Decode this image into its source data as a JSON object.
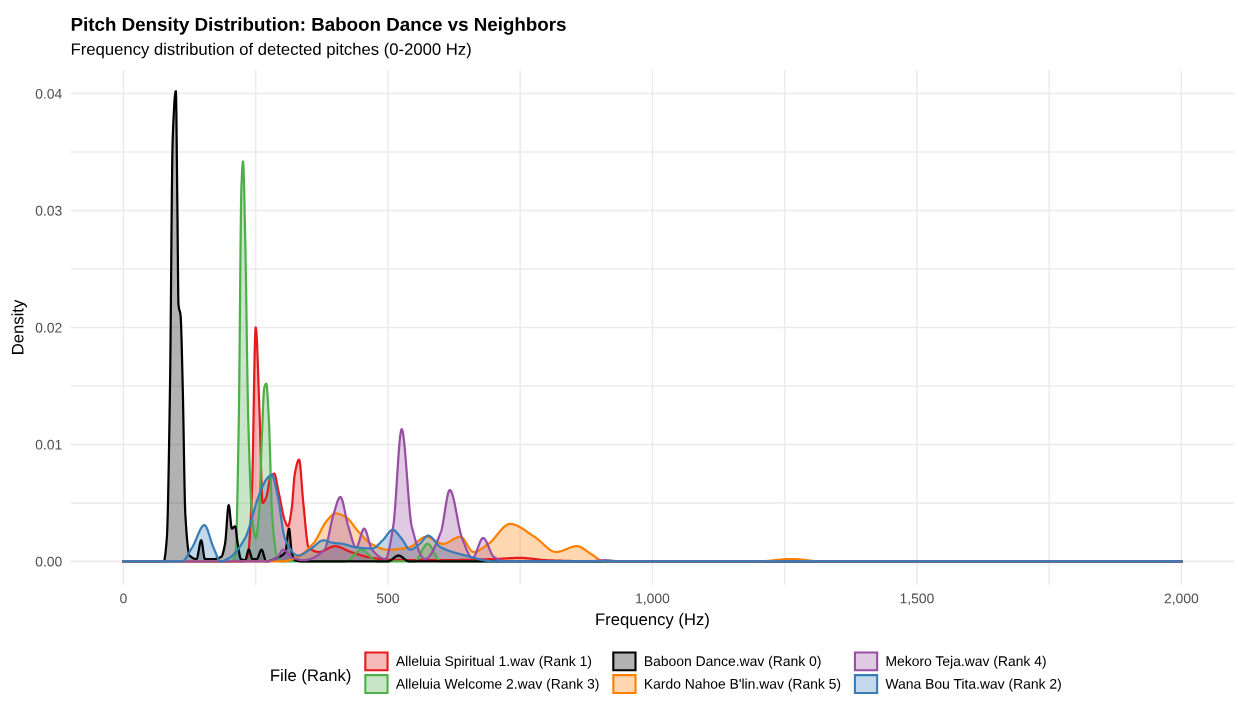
{
  "chart_data": {
    "type": "area",
    "title": "Pitch Density Distribution: Baboon Dance vs Neighbors",
    "subtitle": "Frequency distribution of detected pitches (0-2000 Hz)",
    "xlabel": "Frequency (Hz)",
    "ylabel": "Density",
    "legend_title": "File (Rank)",
    "legend": "bottom",
    "grid": true,
    "xlim": [
      -100,
      2100
    ],
    "xticks": [
      0,
      {
        "value": 250,
        "label": null
      },
      500,
      {
        "value": 750,
        "label": null
      },
      {
        "value": 1000,
        "label": "1,000"
      },
      {
        "value": 1250,
        "label": null
      },
      {
        "value": 1500,
        "label": "1,500"
      },
      {
        "value": 1750,
        "label": null
      },
      {
        "value": 2000,
        "label": "2,000"
      }
    ],
    "ylim": [
      -0.002,
      0.042
    ],
    "yticks": [
      {
        "value": 0,
        "label": "0.00"
      },
      {
        "value": 0.005,
        "label": null
      },
      {
        "value": 0.01,
        "label": "0.01"
      },
      {
        "value": 0.015,
        "label": null
      },
      {
        "value": 0.02,
        "label": "0.02"
      },
      {
        "value": 0.025,
        "label": null
      },
      {
        "value": 0.03,
        "label": "0.03"
      },
      {
        "value": 0.035,
        "label": null
      },
      {
        "value": 0.04,
        "label": "0.04"
      }
    ],
    "series": [
      {
        "name": "Alleluia Spiritual 1.wav (Rank 1)",
        "color": "#e41a1c",
        "x": [
          0,
          225,
          235,
          243,
          250,
          257,
          263,
          270,
          278,
          285,
          293,
          305,
          311,
          318,
          324,
          332,
          340,
          350,
          370,
          400,
          430,
          470,
          520,
          600,
          700,
          750,
          800,
          900,
          1000,
          2000
        ],
        "values": [
          0,
          0,
          0.0005,
          0.006,
          0.02,
          0.013,
          0.005,
          0.0055,
          0.0072,
          0.0075,
          0.006,
          0.0035,
          0.003,
          0.0045,
          0.0075,
          0.0087,
          0.005,
          0.0012,
          0.0008,
          0.0013,
          0.0008,
          0.0003,
          0.0001,
          0.0001,
          0.0002,
          0.0003,
          0.0001,
          0,
          0,
          0
        ]
      },
      {
        "name": "Alleluia Welcome 2.wav (Rank 3)",
        "color": "#4daf4a",
        "x": [
          0,
          205,
          212,
          218,
          223,
          226,
          230,
          236,
          243,
          250,
          256,
          262,
          266,
          270,
          275,
          281,
          290,
          300,
          420,
          450,
          480,
          550,
          575,
          600,
          700,
          2000
        ],
        "values": [
          0,
          0,
          0.0008,
          0.012,
          0.032,
          0.0342,
          0.028,
          0.012,
          0.004,
          0.002,
          0.004,
          0.011,
          0.0148,
          0.0152,
          0.012,
          0.004,
          0.0005,
          0,
          0,
          0.001,
          0,
          0,
          0.0015,
          0,
          0,
          0
        ]
      },
      {
        "name": "Baboon Dance.wav (Rank 0)",
        "color": "#000000",
        "x": [
          0,
          76,
          82,
          88,
          93,
          99,
          102,
          104,
          108,
          112,
          117,
          125,
          138,
          147,
          154,
          170,
          185,
          192,
          199,
          205,
          211,
          216,
          222,
          230,
          237,
          244,
          252,
          261,
          270,
          290,
          306,
          313,
          318,
          324,
          340,
          400,
          500,
          520,
          540,
          600,
          700,
          2000
        ],
        "values": [
          0,
          0,
          0.002,
          0.015,
          0.036,
          0.0402,
          0.03,
          0.022,
          0.021,
          0.015,
          0.004,
          0.0005,
          0.0002,
          0.0018,
          0.0002,
          0.0002,
          0.0004,
          0.0015,
          0.0048,
          0.0028,
          0.003,
          0.0015,
          0.0002,
          0.0001,
          0.001,
          0.0002,
          0.0002,
          0.001,
          0,
          0.0003,
          0.0008,
          0.0028,
          0.0008,
          0.0001,
          0,
          0,
          0,
          0.0005,
          0,
          0,
          0,
          0
        ]
      },
      {
        "name": "Kardo Nahoe B'lin.wav (Rank 5)",
        "color": "#ff7f00",
        "x": [
          0,
          300,
          330,
          360,
          385,
          401,
          420,
          445,
          468,
          500,
          540,
          572,
          604,
          637,
          662,
          690,
          731,
          777,
          818,
          857,
          885,
          908,
          1000,
          1200,
          1262,
          1320,
          2000
        ],
        "values": [
          0,
          0,
          0.0004,
          0.0016,
          0.0035,
          0.0041,
          0.0038,
          0.0025,
          0.0015,
          0.001,
          0.0012,
          0.0021,
          0.0015,
          0.0021,
          0.0008,
          0.0015,
          0.0032,
          0.0021,
          0.0008,
          0.0013,
          0.0006,
          0,
          0,
          0,
          0.0002,
          0,
          0
        ]
      },
      {
        "name": "Mekoro Teja.wav (Rank 4)",
        "color": "#984ea3",
        "x": [
          0,
          270,
          290,
          302,
          320,
          340,
          380,
          397,
          410,
          425,
          440,
          455,
          470,
          495,
          510,
          526,
          545,
          570,
          600,
          617,
          640,
          660,
          680,
          700,
          720,
          880,
          910,
          940,
          2000
        ],
        "values": [
          0,
          0,
          0.0003,
          0.001,
          0.0003,
          0.0001,
          0.001,
          0.004,
          0.0055,
          0.003,
          0.0012,
          0.0028,
          0.001,
          0.0002,
          0.003,
          0.0113,
          0.003,
          0.0002,
          0.0025,
          0.0061,
          0.002,
          0.0003,
          0.002,
          0.0004,
          0,
          0,
          0.0001,
          0,
          0
        ]
      },
      {
        "name": "Wana Bou Tita.wav (Rank 2)",
        "color": "#377eb8",
        "x": [
          0,
          110,
          130,
          153,
          170,
          184,
          200,
          230,
          255,
          270,
          280,
          292,
          305,
          330,
          355,
          378,
          395,
          414,
          440,
          470,
          490,
          509,
          525,
          542,
          560,
          576,
          600,
          647,
          700,
          2000
        ],
        "values": [
          0,
          0,
          0.0012,
          0.0031,
          0.0012,
          0,
          0.0003,
          0.002,
          0.0055,
          0.007,
          0.0074,
          0.0055,
          0.002,
          0.0005,
          0.0011,
          0.0018,
          0.0016,
          0.0015,
          0.0012,
          0.0011,
          0.0018,
          0.0027,
          0.002,
          0.001,
          0.0015,
          0.0022,
          0.0012,
          0.0005,
          0,
          0
        ]
      }
    ]
  }
}
